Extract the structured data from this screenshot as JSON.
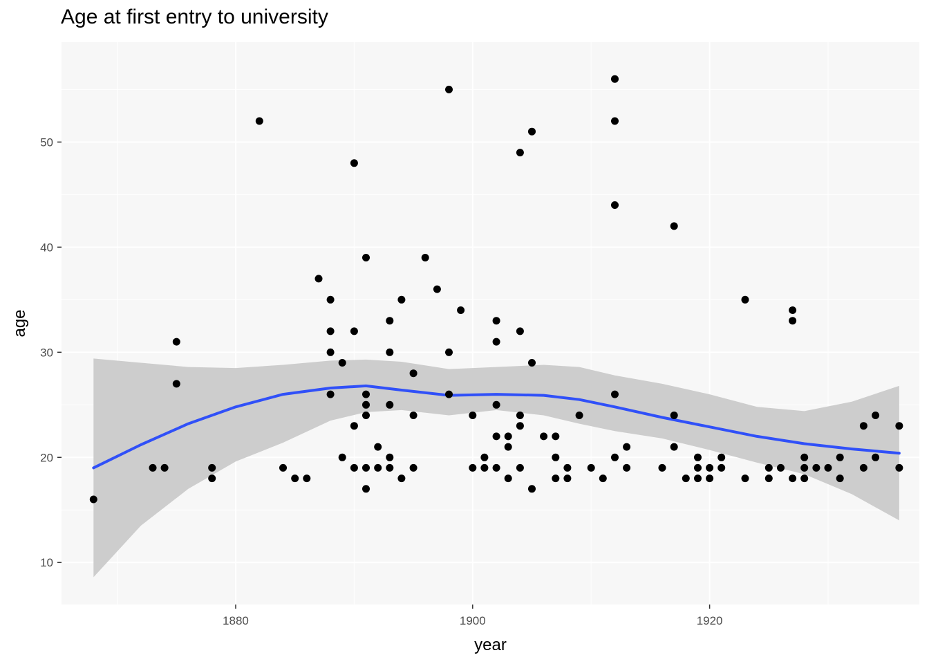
{
  "chart_data": {
    "type": "scatter",
    "title": "Age at first entry to university",
    "xlabel": "year",
    "ylabel": "age",
    "xlim": [
      1865.3,
      1937.7
    ],
    "ylim": [
      6.0,
      59.5
    ],
    "x_ticks": [
      1880,
      1900,
      1920
    ],
    "y_ticks": [
      10,
      20,
      30,
      40,
      50
    ],
    "grid": true,
    "colors": {
      "panel": "#f7f7f7",
      "grid": "#ffffff",
      "points": "#000000",
      "smooth_line": "#3050f8",
      "ribbon": "#c8c8c8"
    },
    "points": [
      [
        1868,
        16
      ],
      [
        1873,
        19
      ],
      [
        1874,
        19
      ],
      [
        1875,
        31
      ],
      [
        1875,
        27
      ],
      [
        1878,
        19
      ],
      [
        1878,
        18
      ],
      [
        1882,
        52
      ],
      [
        1884,
        19
      ],
      [
        1885,
        18
      ],
      [
        1886,
        18
      ],
      [
        1887,
        37
      ],
      [
        1888,
        35
      ],
      [
        1888,
        32
      ],
      [
        1888,
        30
      ],
      [
        1888,
        26
      ],
      [
        1889,
        29
      ],
      [
        1889,
        20
      ],
      [
        1890,
        48
      ],
      [
        1890,
        32
      ],
      [
        1890,
        23
      ],
      [
        1890,
        19
      ],
      [
        1891,
        39
      ],
      [
        1891,
        26
      ],
      [
        1891,
        25
      ],
      [
        1891,
        24
      ],
      [
        1891,
        19
      ],
      [
        1891,
        17
      ],
      [
        1892,
        21
      ],
      [
        1892,
        19
      ],
      [
        1893,
        33
      ],
      [
        1893,
        30
      ],
      [
        1893,
        25
      ],
      [
        1893,
        20
      ],
      [
        1893,
        19
      ],
      [
        1894,
        35
      ],
      [
        1894,
        18
      ],
      [
        1895,
        28
      ],
      [
        1895,
        24
      ],
      [
        1895,
        19
      ],
      [
        1896,
        39
      ],
      [
        1897,
        36
      ],
      [
        1898,
        55
      ],
      [
        1898,
        30
      ],
      [
        1898,
        26
      ],
      [
        1899,
        34
      ],
      [
        1900,
        24
      ],
      [
        1900,
        19
      ],
      [
        1901,
        20
      ],
      [
        1901,
        19
      ],
      [
        1902,
        33
      ],
      [
        1902,
        31
      ],
      [
        1902,
        25
      ],
      [
        1902,
        22
      ],
      [
        1902,
        19
      ],
      [
        1903,
        22
      ],
      [
        1903,
        21
      ],
      [
        1903,
        18
      ],
      [
        1904,
        49
      ],
      [
        1904,
        32
      ],
      [
        1904,
        24
      ],
      [
        1904,
        23
      ],
      [
        1904,
        19
      ],
      [
        1905,
        51
      ],
      [
        1905,
        29
      ],
      [
        1905,
        17
      ],
      [
        1906,
        22
      ],
      [
        1907,
        22
      ],
      [
        1907,
        20
      ],
      [
        1907,
        18
      ],
      [
        1908,
        19
      ],
      [
        1908,
        18
      ],
      [
        1909,
        24
      ],
      [
        1910,
        19
      ],
      [
        1911,
        18
      ],
      [
        1912,
        56
      ],
      [
        1912,
        52
      ],
      [
        1912,
        44
      ],
      [
        1912,
        26
      ],
      [
        1912,
        20
      ],
      [
        1913,
        21
      ],
      [
        1913,
        19
      ],
      [
        1916,
        19
      ],
      [
        1917,
        42
      ],
      [
        1917,
        24
      ],
      [
        1917,
        21
      ],
      [
        1918,
        18
      ],
      [
        1919,
        20
      ],
      [
        1919,
        19
      ],
      [
        1919,
        18
      ],
      [
        1920,
        19
      ],
      [
        1920,
        18
      ],
      [
        1921,
        20
      ],
      [
        1921,
        19
      ],
      [
        1923,
        35
      ],
      [
        1923,
        18
      ],
      [
        1925,
        19
      ],
      [
        1925,
        18
      ],
      [
        1926,
        19
      ],
      [
        1927,
        34
      ],
      [
        1927,
        33
      ],
      [
        1927,
        18
      ],
      [
        1928,
        20
      ],
      [
        1928,
        19
      ],
      [
        1928,
        18
      ],
      [
        1929,
        19
      ],
      [
        1930,
        19
      ],
      [
        1931,
        20
      ],
      [
        1931,
        18
      ],
      [
        1933,
        23
      ],
      [
        1933,
        19
      ],
      [
        1934,
        24
      ],
      [
        1934,
        20
      ],
      [
        1936,
        23
      ],
      [
        1936,
        19
      ]
    ],
    "smooth": {
      "x": [
        1868,
        1872,
        1876,
        1880,
        1884,
        1888,
        1891,
        1894,
        1898,
        1902,
        1906,
        1909,
        1912,
        1916,
        1920,
        1924,
        1928,
        1932,
        1936
      ],
      "y": [
        19.0,
        21.2,
        23.2,
        24.8,
        26.0,
        26.6,
        26.8,
        26.4,
        25.9,
        26.0,
        25.9,
        25.5,
        24.8,
        23.8,
        22.9,
        22.0,
        21.3,
        20.8,
        20.4
      ],
      "lower": [
        8.6,
        13.5,
        17.0,
        19.6,
        21.4,
        23.5,
        24.3,
        24.5,
        24.0,
        24.5,
        24.0,
        23.2,
        22.5,
        21.8,
        20.7,
        19.5,
        18.4,
        16.5,
        14.0
      ],
      "upper": [
        29.4,
        29.0,
        28.6,
        28.5,
        28.8,
        29.2,
        29.3,
        29.1,
        28.4,
        28.6,
        28.8,
        28.6,
        27.8,
        27.0,
        26.0,
        24.8,
        24.4,
        25.3,
        26.8
      ]
    }
  }
}
